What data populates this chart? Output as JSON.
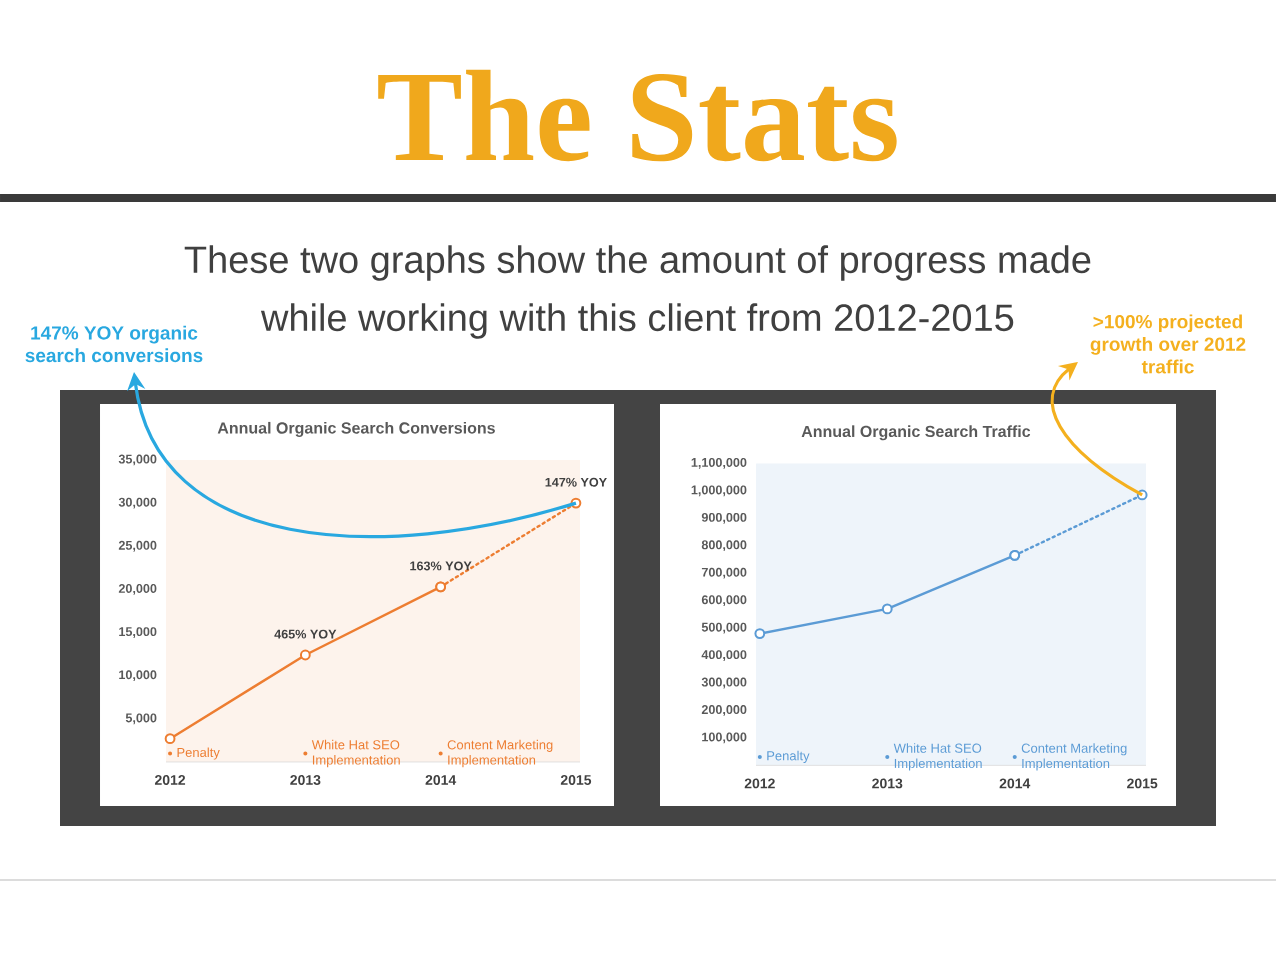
{
  "chart_data": [
    {
      "type": "other",
      "title": "The Stats",
      "subtitle": "These two graphs show the amount of progress made while working with this client from 2012-2015"
    },
    {
      "type": "line",
      "title": "Annual Organic Search Conversions",
      "categories": [
        "2012",
        "2013",
        "2014",
        "2015"
      ],
      "series": [
        {
          "color": "#ed7d31",
          "values": [
            2700,
            12400,
            20300,
            null
          ]
        },
        {
          "color": "#ed7d31",
          "values": [
            null,
            null,
            20300,
            30000
          ],
          "line_style": "dotted"
        }
      ],
      "ylim": [
        0,
        35000
      ],
      "yticks": [
        {
          "value": 5000,
          "label": "5,000"
        },
        {
          "value": 10000,
          "label": "10,000"
        },
        {
          "value": 15000,
          "label": "15,000"
        },
        {
          "value": 20000,
          "label": "20,000"
        },
        {
          "value": 25000,
          "label": "25,000"
        },
        {
          "value": 30000,
          "label": "30,000"
        },
        {
          "value": 35000,
          "label": "35,000"
        }
      ],
      "marker": "circle",
      "annotations": [
        {
          "text": "465% YOY",
          "x": "2013",
          "y": 12400
        },
        {
          "text": "163% YOY",
          "x": "2014",
          "y": 20300
        },
        {
          "text": "147% YOY",
          "x": "2015",
          "y": 30000
        },
        {
          "text": "Penalty",
          "x": "2012"
        },
        {
          "text": "White Hat SEO Implementation",
          "x": "2013"
        },
        {
          "text": "Content Marketing Implementation",
          "x": "2014"
        },
        "147% YOY organic search conversions"
      ]
    },
    {
      "type": "line",
      "title": "Annual Organic Search Traffic",
      "categories": [
        "2012",
        "2013",
        "2014",
        "2015"
      ],
      "series": [
        {
          "color": "#5b9bd5",
          "values": [
            480000,
            570000,
            765000,
            null
          ]
        },
        {
          "color": "#5b9bd5",
          "values": [
            null,
            null,
            765000,
            985000
          ],
          "line_style": "dotted"
        }
      ],
      "ylim": [
        0,
        1100000
      ],
      "yticks": [
        {
          "value": 100000,
          "label": "100,000"
        },
        {
          "value": 200000,
          "label": "200,000"
        },
        {
          "value": 300000,
          "label": "300,000"
        },
        {
          "value": 400000,
          "label": "400,000"
        },
        {
          "value": 500000,
          "label": "500,000"
        },
        {
          "value": 600000,
          "label": "600,000"
        },
        {
          "value": 700000,
          "label": "700,000"
        },
        {
          "value": 800000,
          "label": "800,000"
        },
        {
          "value": 900000,
          "label": "900,000"
        },
        {
          "value": 1000000,
          "label": "1,000,000"
        },
        {
          "value": 1100000,
          "label": "1,100,000"
        }
      ],
      "marker": "circle",
      "annotations": [
        {
          "text": "Penalty",
          "x": "2012"
        },
        {
          "text": "White Hat SEO Implementation",
          "x": "2013"
        },
        {
          "text": "Content Marketing Implementation",
          "x": "2014"
        },
        ">100% projected growth over 2012 traffic"
      ]
    }
  ]
}
